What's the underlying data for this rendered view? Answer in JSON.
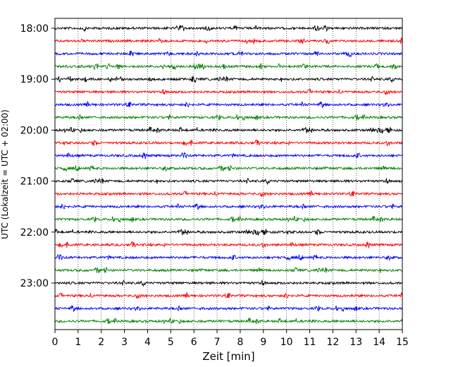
{
  "chart_data": {
    "type": "line",
    "title": "",
    "xlabel": "Zeit  [min]",
    "ylabel": "UTC (Lokalzeit = UTC + 02:00)",
    "xlim": [
      0,
      15
    ],
    "x_ticks": [
      0,
      1,
      2,
      3,
      4,
      5,
      6,
      7,
      8,
      9,
      10,
      11,
      12,
      13,
      14,
      15
    ],
    "x_grid": true,
    "y_ticks": [
      "18:00",
      "19:00",
      "20:00",
      "21:00",
      "22:00",
      "23:00"
    ],
    "trace_start_times": [
      "18:00",
      "18:15",
      "18:30",
      "18:45",
      "19:00",
      "19:15",
      "19:30",
      "19:45",
      "20:00",
      "20:15",
      "20:30",
      "20:45",
      "21:00",
      "21:15",
      "21:30",
      "21:45",
      "22:00",
      "22:15",
      "22:30",
      "22:45",
      "23:00",
      "23:15",
      "23:30",
      "23:45"
    ],
    "trace_color_cycle": [
      "#000000",
      "#ff0000",
      "#0000ff",
      "#008000"
    ],
    "legend": "none"
  }
}
